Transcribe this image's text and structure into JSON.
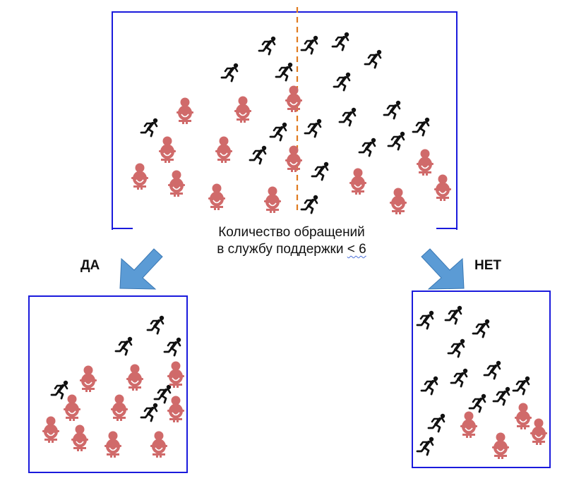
{
  "split": {
    "line1": "Количество обращений",
    "line2_prefix": "в службу поддержки ",
    "line2_operator": "< 6"
  },
  "branches": {
    "yes": "ДА",
    "no": "НЕТ"
  },
  "legend_colors": {
    "churner": "#111111",
    "loyal": "#d06a6a",
    "box_border": "#1a1adc",
    "split_line": "#e07b20",
    "arrow": "#5b9bd5"
  },
  "icons": {
    "churner": "running-person-icon",
    "loyal": "seated-person-icon"
  }
}
